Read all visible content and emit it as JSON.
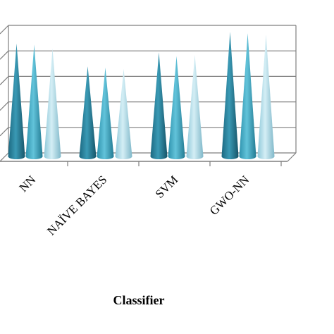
{
  "chart_data": {
    "type": "bar",
    "bar_shape": "cone-3d",
    "categories": [
      "NN",
      "NAÏVE BAYES",
      "SVM",
      "GWO-NN"
    ],
    "series": [
      {
        "values": [
          82,
          64,
          75,
          91
        ]
      },
      {
        "values": [
          81,
          63,
          72,
          90
        ]
      },
      {
        "values": [
          78,
          62,
          73,
          89
        ]
      }
    ],
    "xlabel": "Classifier",
    "ylim": [
      0,
      100
    ],
    "grid": true,
    "colors": [
      "#2e8ba6",
      "#4fb6d0",
      "#a9dbe8"
    ]
  }
}
